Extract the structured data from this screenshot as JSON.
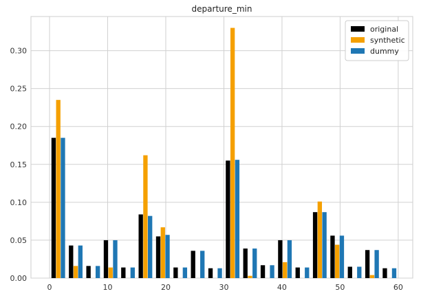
{
  "chart_data": {
    "type": "bar",
    "title": "departure_min",
    "xlabel": "",
    "ylabel": "",
    "xlim": [
      -3.2,
      62.5
    ],
    "ylim": [
      0,
      0.345
    ],
    "x_ticks": [
      0,
      10,
      20,
      30,
      40,
      50,
      60
    ],
    "y_ticks": [
      0.0,
      0.05,
      0.1,
      0.15,
      0.2,
      0.25,
      0.3
    ],
    "grid": true,
    "legend_position": "top-right",
    "bin_centers": [
      1.5,
      4.5,
      7.5,
      10.5,
      13.5,
      16.5,
      19.5,
      22.5,
      25.5,
      28.5,
      31.5,
      34.5,
      37.5,
      40.5,
      43.5,
      46.5,
      49.5,
      52.5,
      55.5,
      58.5
    ],
    "series": [
      {
        "name": "original",
        "color": "#000000",
        "values": [
          0.185,
          0.043,
          0.016,
          0.05,
          0.014,
          0.084,
          0.055,
          0.014,
          0.036,
          0.013,
          0.155,
          0.039,
          0.017,
          0.05,
          0.014,
          0.087,
          0.056,
          0.015,
          0.037,
          0.013
        ]
      },
      {
        "name": "synthetic",
        "color": "#f5a000",
        "values": [
          0.235,
          0.016,
          0.0,
          0.014,
          0.0,
          0.162,
          0.067,
          0.0,
          0.0,
          0.0,
          0.33,
          0.003,
          0.0,
          0.021,
          0.0,
          0.101,
          0.044,
          0.0,
          0.004,
          0.0
        ]
      },
      {
        "name": "dummy",
        "color": "#1f77b4",
        "values": [
          0.185,
          0.043,
          0.016,
          0.05,
          0.014,
          0.082,
          0.057,
          0.014,
          0.036,
          0.013,
          0.156,
          0.039,
          0.017,
          0.05,
          0.014,
          0.087,
          0.056,
          0.015,
          0.037,
          0.013
        ]
      }
    ]
  }
}
